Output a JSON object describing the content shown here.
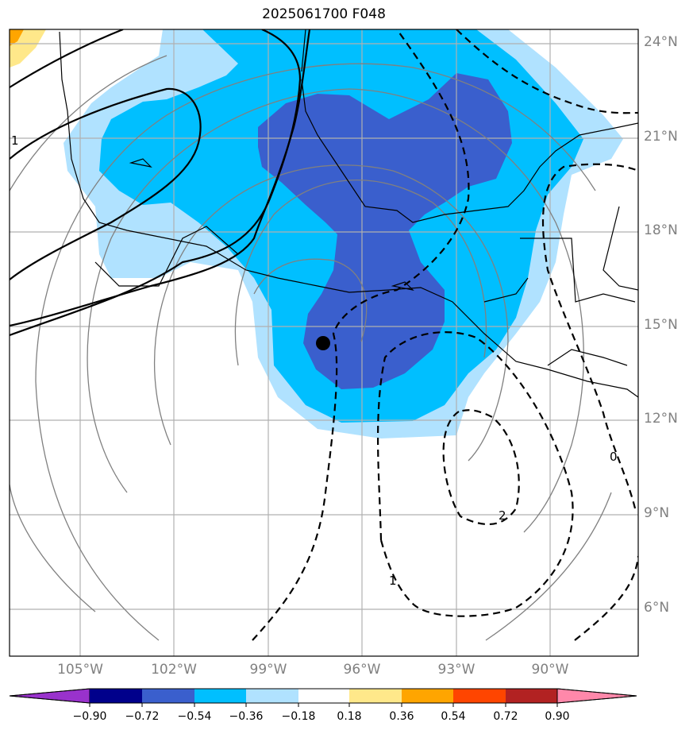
{
  "title": "2025061700 F048",
  "lat_labels": [
    "24°N",
    "21°N",
    "18°N",
    "15°N",
    "12°N",
    "9°N",
    "6°N"
  ],
  "lon_labels": [
    "105°W",
    "102°W",
    "99°W",
    "96°W",
    "93°W",
    "90°W"
  ],
  "contour_labels": [
    "1",
    "0",
    "2",
    "1"
  ],
  "colorbar": {
    "ticks": [
      "−0.90",
      "−0.72",
      "−0.54",
      "−0.36",
      "−0.18",
      "0.18",
      "0.36",
      "0.54",
      "0.72",
      "0.90"
    ],
    "colors": [
      "#9932cc",
      "#00008b",
      "#3a5fcd",
      "#00bfff",
      "#b0e2ff",
      "#ffffff",
      "#ffe88a",
      "#ffa500",
      "#ff4500",
      "#b22222",
      "#ff88aa"
    ]
  },
  "marker": "storm-center",
  "colors": {
    "light_blue": "#b0e2ff",
    "sky_blue": "#00bfff",
    "royal_blue": "#3a5fcd",
    "gridline": "#b0b0b0",
    "gray_contour": "#808080"
  }
}
